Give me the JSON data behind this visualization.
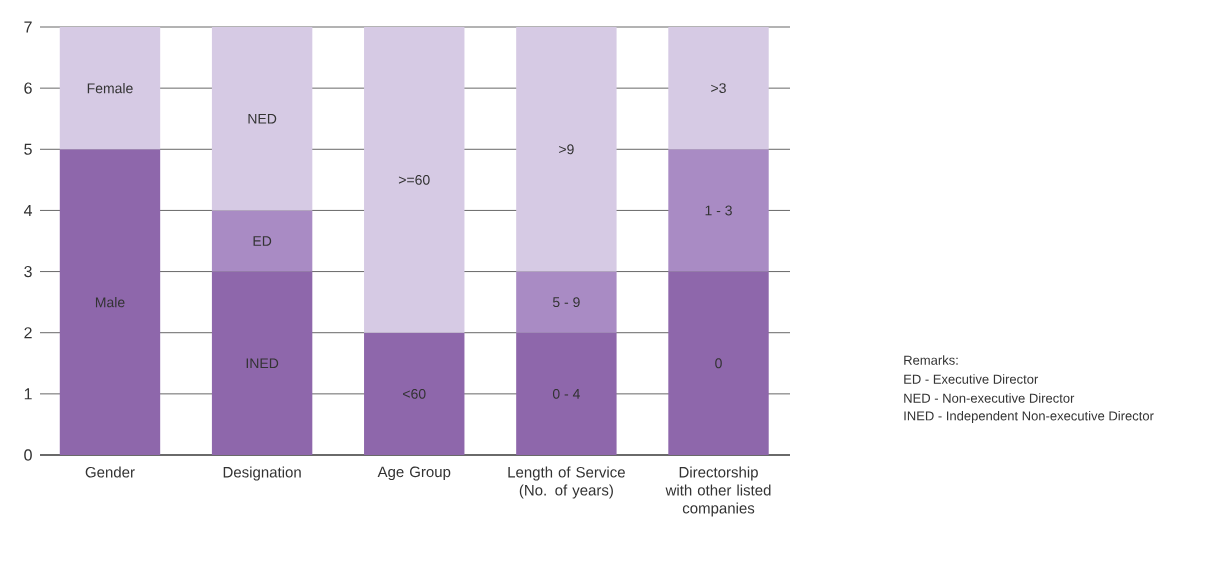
{
  "chart_data": {
    "type": "bar",
    "stacked": true,
    "categories": [
      "Gender",
      "Designation",
      "Age Group",
      "Length of Service (No. of years)",
      "Directorship with other listed companies"
    ],
    "series": [
      {
        "color": "#8e67ab",
        "values": [
          5,
          3,
          2,
          2,
          3
        ]
      },
      {
        "color": "#a98bc4",
        "values": [
          null,
          1,
          null,
          1,
          2
        ]
      },
      {
        "color": "#d6cae4",
        "values": [
          2,
          3,
          5,
          4,
          2
        ]
      }
    ],
    "ylim": [
      0,
      7
    ],
    "yticks": [
      0,
      1,
      2,
      3,
      4,
      5,
      6,
      7
    ],
    "grid": "y",
    "annotations": [
      "Male",
      "INED",
      "<60",
      "0 - 4",
      "0",
      "ED",
      "5 - 9",
      "1 - 3",
      "Female",
      "NED",
      ">=60",
      ">9",
      ">3",
      "Remarks:",
      "ED - Executive Director",
      "NED - Non-executive Director",
      "INED - Independent Non-executive Director"
    ]
  }
}
